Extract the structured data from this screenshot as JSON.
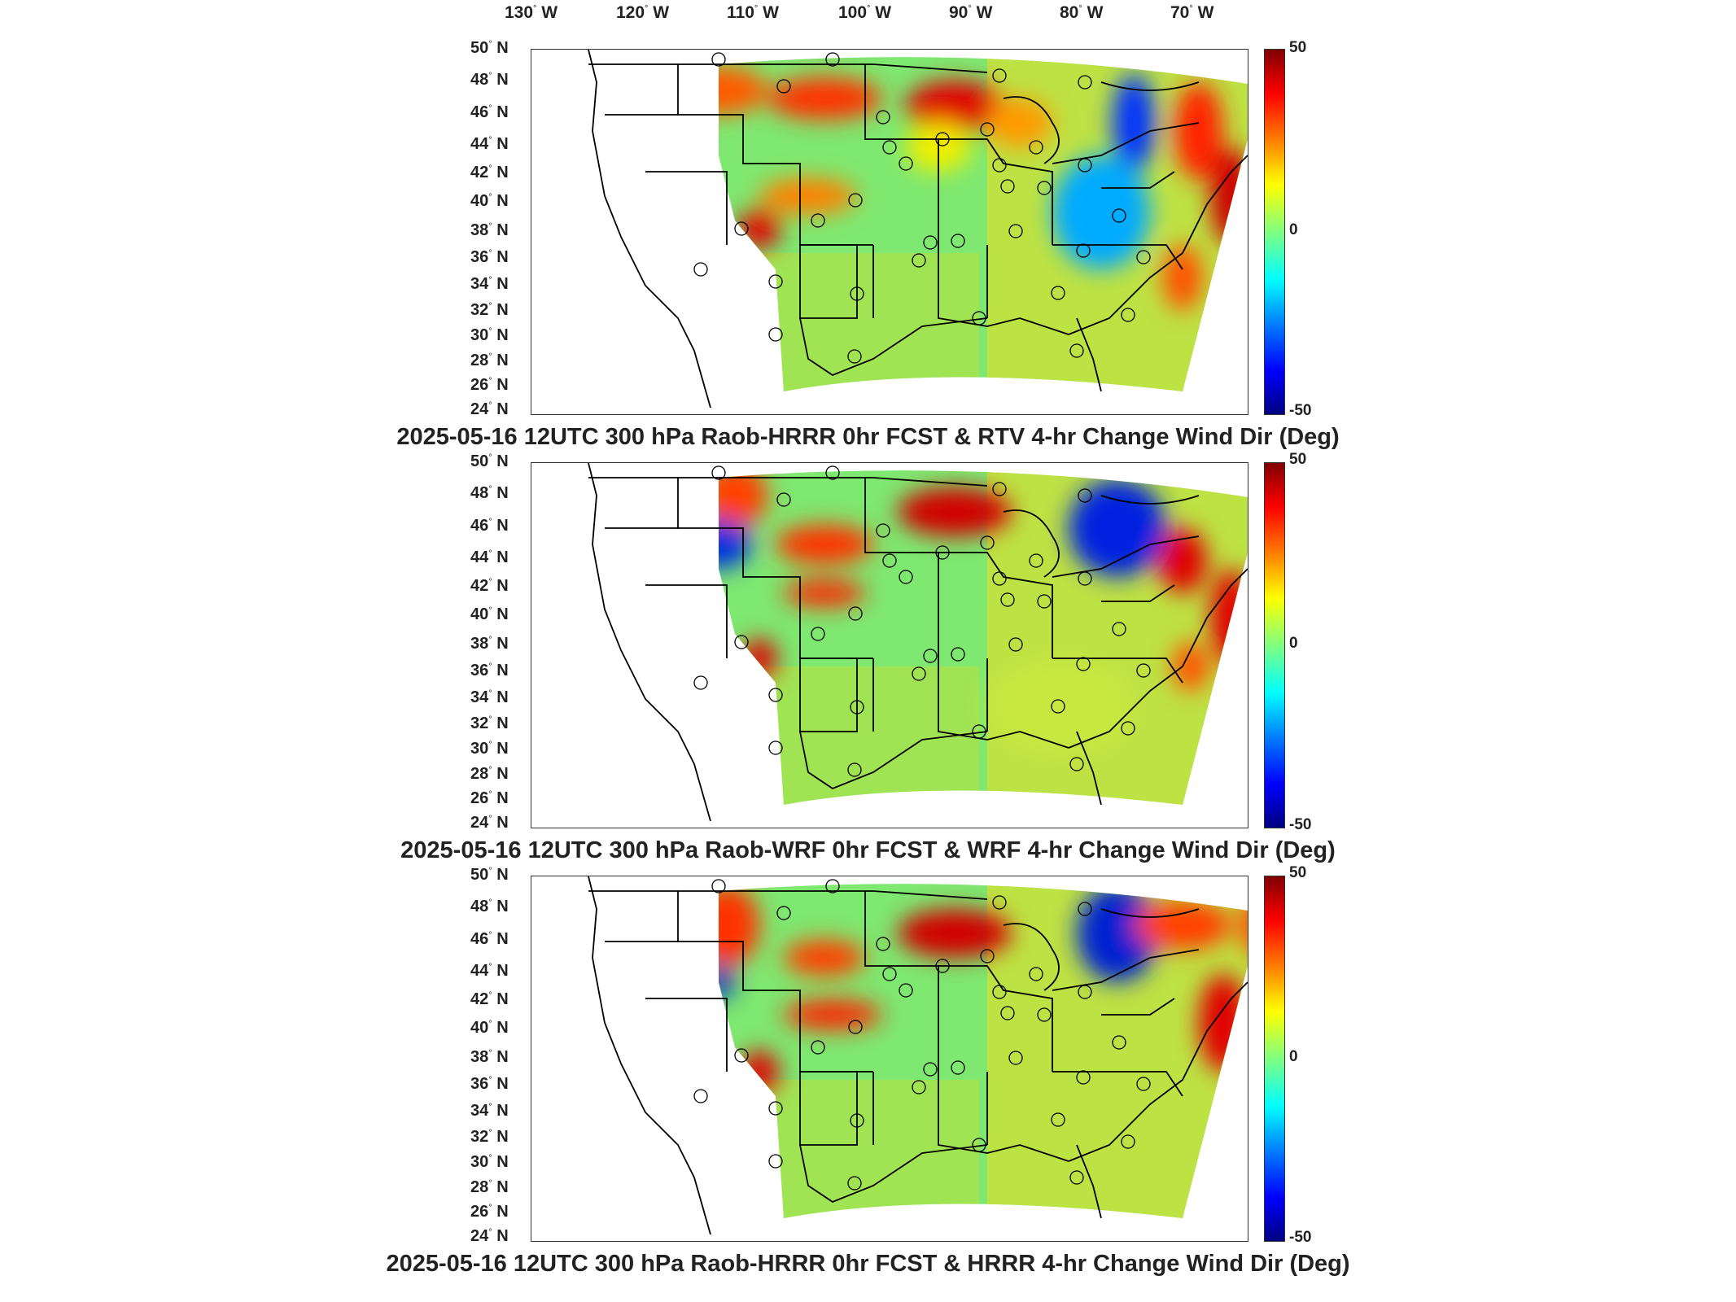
{
  "lon_labels": [
    {
      "deg": "130",
      "hemi": "W"
    },
    {
      "deg": "120",
      "hemi": "W"
    },
    {
      "deg": "110",
      "hemi": "W"
    },
    {
      "deg": "100",
      "hemi": "W"
    },
    {
      "deg": "90",
      "hemi": "W"
    },
    {
      "deg": "80",
      "hemi": "W"
    },
    {
      "deg": "70",
      "hemi": "W"
    }
  ],
  "lat_labels": [
    {
      "deg": "50",
      "hemi": "N"
    },
    {
      "deg": "48",
      "hemi": "N"
    },
    {
      "deg": "46",
      "hemi": "N"
    },
    {
      "deg": "44",
      "hemi": "N"
    },
    {
      "deg": "42",
      "hemi": "N"
    },
    {
      "deg": "40",
      "hemi": "N"
    },
    {
      "deg": "38",
      "hemi": "N"
    },
    {
      "deg": "36",
      "hemi": "N"
    },
    {
      "deg": "34",
      "hemi": "N"
    },
    {
      "deg": "32",
      "hemi": "N"
    },
    {
      "deg": "30",
      "hemi": "N"
    },
    {
      "deg": "28",
      "hemi": "N"
    },
    {
      "deg": "26",
      "hemi": "N"
    },
    {
      "deg": "24",
      "hemi": "N"
    }
  ],
  "colorbar": {
    "max": "50",
    "mid": "0",
    "min": "-50"
  },
  "panels": [
    {
      "title": "2025-05-16 12UTC 300 hPa Raob-HRRR 0hr FCST & RTV 4-hr Change Wind Dir (Deg)"
    },
    {
      "title": "2025-05-16 12UTC 300 hPa Raob-WRF 0hr FCST & WRF 4-hr Change Wind Dir (Deg)"
    },
    {
      "title": "2025-05-16 12UTC 300 hPa Raob-HRRR 0hr FCST & HRRR 4-hr Change Wind Dir (Deg)"
    }
  ]
}
